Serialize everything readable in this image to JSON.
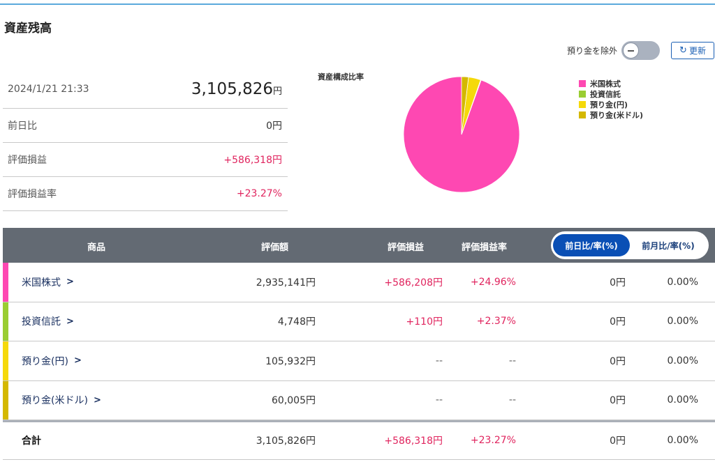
{
  "page": {
    "title": "資産残高"
  },
  "toolbar": {
    "exclude_label": "預り金を除外",
    "refresh_label": "更新",
    "refresh_icon": "refresh-icon"
  },
  "summary": {
    "date": "2024/1/21 21:33",
    "total_value": "3,105,826",
    "yen": "円",
    "rows": [
      {
        "label": "前日比",
        "value": "0円"
      },
      {
        "label": "評価損益",
        "value": "+586,318円"
      },
      {
        "label": "評価損益率",
        "value": "+23.27%"
      }
    ]
  },
  "chart_data": {
    "type": "pie",
    "title": "資産構成比率",
    "labels": [
      "米国株式",
      "投資信託",
      "預り金(円)",
      "預り金(米ドル)"
    ],
    "values": [
      2935141,
      4748,
      105932,
      60005
    ],
    "colors": [
      "#fe48b2",
      "#9acd32",
      "#f5d90a",
      "#d4b800"
    ],
    "legend_position": "right"
  },
  "table": {
    "headers": {
      "product": "商品",
      "value": "評価額",
      "pl": "評価損益",
      "pl_rate": "評価損益率"
    },
    "toggle": {
      "active": "前日比/率(%)",
      "inactive": "前月比/率(%)"
    },
    "rows": [
      {
        "name": "米国株式",
        "value": "2,935,141円",
        "pl": "+586,208円",
        "pl_rate": "+24.96%",
        "dd": "0円",
        "dd_rate": "0.00%",
        "color": "#fe48b2"
      },
      {
        "name": "投資信託",
        "value": "4,748円",
        "pl": "+110円",
        "pl_rate": "+2.37%",
        "dd": "0円",
        "dd_rate": "0.00%",
        "color": "#9acd32"
      },
      {
        "name": "預り金(円)",
        "value": "105,932円",
        "pl": "--",
        "pl_rate": "--",
        "dd": "0円",
        "dd_rate": "0.00%",
        "color": "#f5d90a"
      },
      {
        "name": "預り金(米ドル)",
        "value": "60,005円",
        "pl": "--",
        "pl_rate": "--",
        "dd": "0円",
        "dd_rate": "0.00%",
        "color": "#d4b800"
      }
    ],
    "total": {
      "name": "合計",
      "value": "3,105,826円",
      "pl": "+586,318円",
      "pl_rate": "+23.27%",
      "dd": "0円",
      "dd_rate": "0.00%"
    }
  }
}
